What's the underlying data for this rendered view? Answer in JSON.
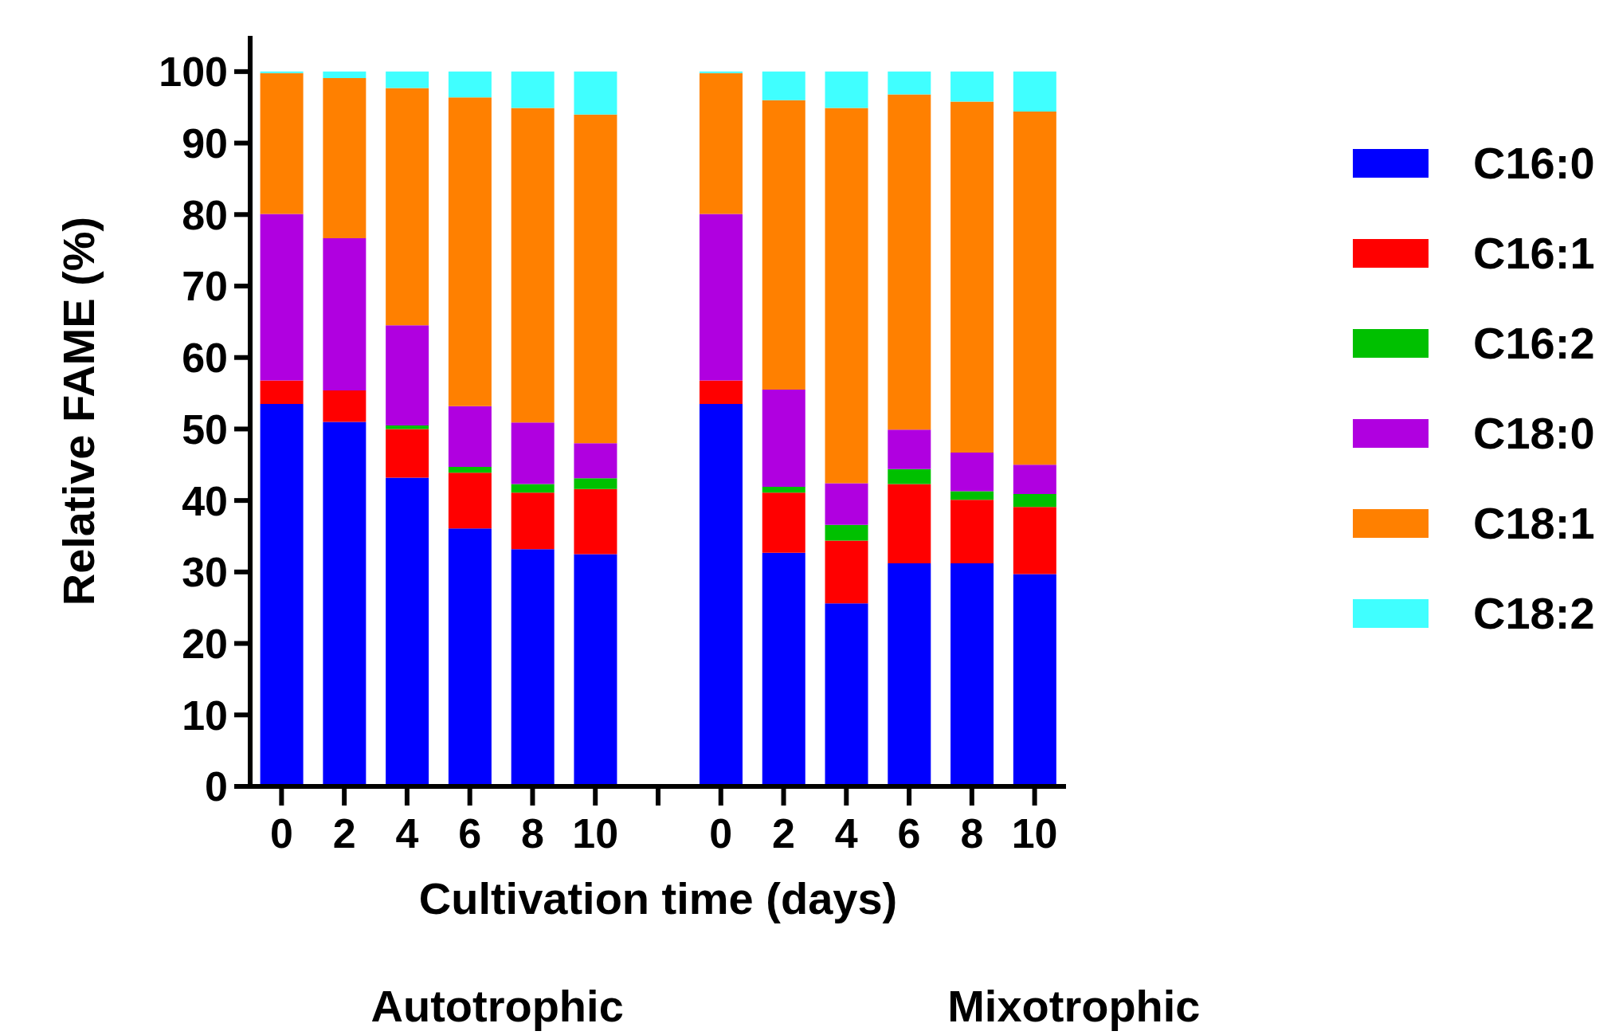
{
  "chart_data": {
    "type": "bar",
    "stacked": true,
    "xlabel": "Cultivation time (days)",
    "ylabel": "Relative FAME (%)",
    "categories": [
      "0",
      "2",
      "4",
      "6",
      "8",
      "10",
      null,
      "0",
      "2",
      "4",
      "6",
      "8",
      "10"
    ],
    "series": [
      {
        "name": "C16:0",
        "color": "#0000ff",
        "values": [
          53.5,
          51,
          43.2,
          36.1,
          33.2,
          32.5,
          null,
          53.5,
          32.7,
          25.6,
          31.2,
          31.2,
          29.7
        ]
      },
      {
        "name": "C16:1",
        "color": "#ff0000",
        "values": [
          3.3,
          4.4,
          6.8,
          7.8,
          7.9,
          9.1,
          null,
          3.3,
          8.4,
          8.8,
          11.1,
          8.9,
          9.4
        ]
      },
      {
        "name": "C16:2",
        "color": "#00c000",
        "values": [
          0,
          0,
          0.5,
          0.8,
          1.2,
          1.5,
          null,
          0,
          0.8,
          2.2,
          2.1,
          1.2,
          1.8
        ]
      },
      {
        "name": "C18:0",
        "color": "#b000e0",
        "values": [
          23.3,
          21.3,
          14,
          8.5,
          8.6,
          4.9,
          null,
          23.3,
          13.6,
          5.8,
          5.5,
          5.4,
          4.1
        ]
      },
      {
        "name": "C18:1",
        "color": "#ff8000",
        "values": [
          19.7,
          22.4,
          33.2,
          43.2,
          44,
          46,
          null,
          19.7,
          40.5,
          52.5,
          46.9,
          49.1,
          49.4
        ]
      },
      {
        "name": "C18:2",
        "color": "#40ffff",
        "values": [
          0.2,
          0.9,
          2.3,
          3.6,
          5.1,
          6,
          null,
          0.2,
          4,
          5.1,
          3.2,
          4.2,
          5.6
        ]
      }
    ],
    "ylim": [
      0,
      105
    ],
    "yticks": [
      0,
      10,
      20,
      30,
      40,
      50,
      60,
      70,
      80,
      90,
      100
    ],
    "legend": "right",
    "annotations": [
      "Autotrophic",
      "Mixotrophic"
    ]
  }
}
